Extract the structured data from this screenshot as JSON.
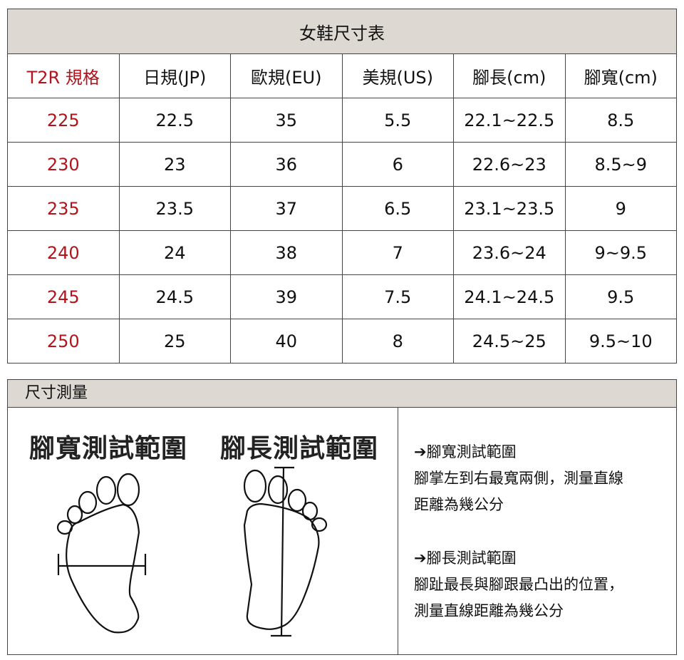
{
  "table": {
    "title": "女鞋尺寸表",
    "headers": [
      "T2R 規格",
      "日規(JP)",
      "歐規(EU)",
      "美規(US)",
      "腳長(cm)",
      "腳寬(cm)"
    ],
    "rows": [
      [
        "225",
        "22.5",
        "35",
        "5.5",
        "22.1~22.5",
        "8.5"
      ],
      [
        "230",
        "23",
        "36",
        "6",
        "22.6~23",
        "8.5~9"
      ],
      [
        "235",
        "23.5",
        "37",
        "6.5",
        "23.1~23.5",
        "9"
      ],
      [
        "240",
        "24",
        "38",
        "7",
        "23.6~24",
        "9~9.5"
      ],
      [
        "245",
        "24.5",
        "39",
        "7.5",
        "24.1~24.5",
        "9.5"
      ],
      [
        "250",
        "25",
        "40",
        "8",
        "24.5~25",
        "9.5~10"
      ]
    ]
  },
  "accent": "#b0141c",
  "measure": {
    "title": "尺寸測量",
    "width_label": "腳寬測試範圍",
    "length_label": "腳長測試範圍",
    "width_heading": "➔腳寬測試範圍",
    "width_desc_1": "腳掌左到右最寬兩側，測量直線",
    "width_desc_2": "距離為幾公分",
    "length_heading": "➔腳長測試範圍",
    "length_desc_1": "腳趾最長與腳跟最凸出的位置，",
    "length_desc_2": "測量直線距離為幾公分"
  }
}
